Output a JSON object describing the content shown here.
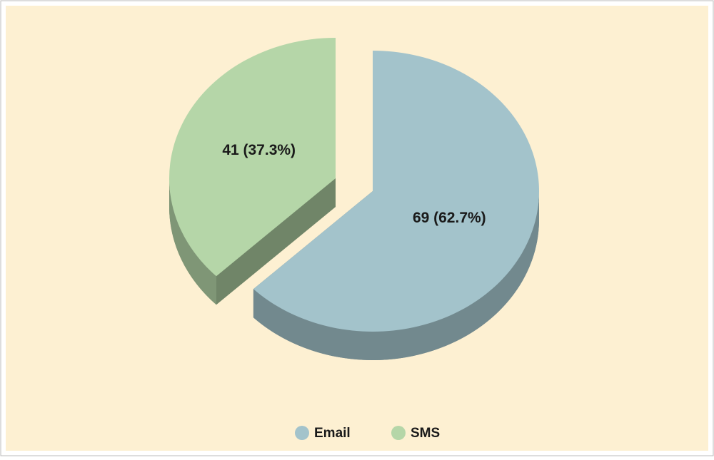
{
  "chart_data": {
    "type": "pie",
    "categories": [
      "Email",
      "SMS"
    ],
    "values": [
      69,
      41
    ],
    "value_labels": [
      "69 (62.7%)",
      "41 (37.3%)"
    ],
    "colors": [
      "#a3c3cb",
      "#b5d6a8"
    ],
    "legend": "bottom"
  }
}
